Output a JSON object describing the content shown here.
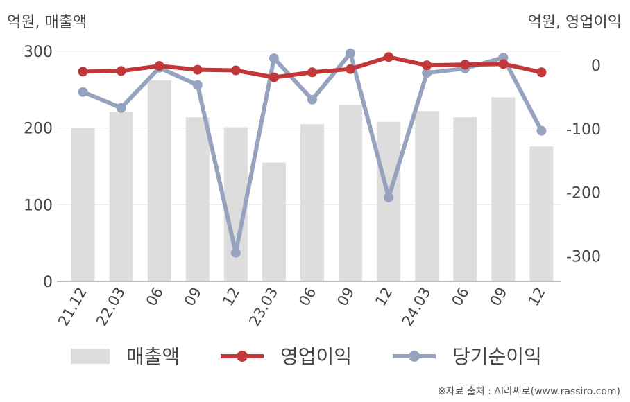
{
  "chart_data": {
    "type": "bar",
    "categories": [
      "21.12",
      "22.03",
      "06",
      "09",
      "12",
      "23.03",
      "06",
      "09",
      "12",
      "24.03",
      "06",
      "09",
      "12"
    ],
    "series": [
      {
        "name": "매출액",
        "type": "bar",
        "axis": "left",
        "color": "#dddddd",
        "values": [
          200,
          221,
          262,
          214,
          201,
          155,
          205,
          230,
          208,
          222,
          214,
          240,
          176
        ]
      },
      {
        "name": "영업이익",
        "type": "line",
        "axis": "right",
        "color": "#c0383a",
        "values": [
          -10,
          -9,
          -1,
          -7,
          -8,
          -19,
          -11,
          -6,
          13,
          0,
          1,
          2,
          -11
        ]
      },
      {
        "name": "당기순이익",
        "type": "line",
        "axis": "right",
        "color": "#95a3bf",
        "values": [
          -42,
          -67,
          -4,
          -31,
          -295,
          11,
          -54,
          19,
          -208,
          -12,
          -5,
          12,
          -103
        ]
      }
    ],
    "left_axis": {
      "title": "억원, 매출액",
      "ticks": [
        0,
        100,
        200,
        300
      ],
      "range": [
        0,
        300
      ]
    },
    "right_axis": {
      "title": "억원, 영업이익",
      "ticks": [
        0,
        -100,
        -200,
        -300
      ],
      "range": [
        -340,
        22
      ]
    },
    "grid": true,
    "legend_position": "bottom"
  },
  "source_note": "※자료 출처 : AI라씨로(www.rassiro.com)"
}
